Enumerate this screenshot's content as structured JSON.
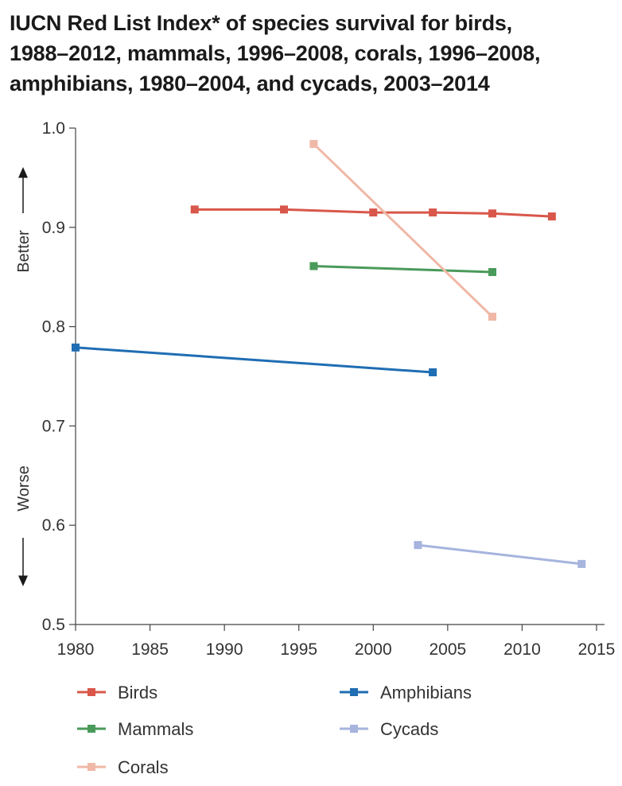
{
  "chart_data": {
    "type": "line",
    "title": [
      "IUCN Red List Index* of species survival for birds,",
      "1988–2012, mammals, 1996–2008, corals, 1996–2008,",
      "amphibians, 1980–2004, and cycads, 2003–2014"
    ],
    "xlim": [
      1980,
      2015
    ],
    "ylim": [
      0.5,
      1.0
    ],
    "x_ticks": [
      "1980",
      "1985",
      "1990",
      "1995",
      "2000",
      "2005",
      "2010",
      "2015"
    ],
    "y_ticks": [
      "0.5",
      "0.6",
      "0.7",
      "0.8",
      "0.9",
      "1.0"
    ],
    "annotations": {
      "better": "Better",
      "worse": "Worse"
    },
    "grid": false,
    "legend_position": "bottom",
    "series": [
      {
        "name": "Birds",
        "color": "#d9574a",
        "x": [
          1988,
          1994,
          2000,
          2004,
          2008,
          2012
        ],
        "y": [
          0.918,
          0.918,
          0.915,
          0.915,
          0.914,
          0.911
        ]
      },
      {
        "name": "Mammals",
        "color": "#4a9a5a",
        "x": [
          1996,
          2008
        ],
        "y": [
          0.861,
          0.855
        ]
      },
      {
        "name": "Corals",
        "color": "#f0b8a6",
        "x": [
          1996,
          2008
        ],
        "y": [
          0.984,
          0.81
        ]
      },
      {
        "name": "Amphibians",
        "color": "#1f6db3",
        "x": [
          1980,
          2004
        ],
        "y": [
          0.779,
          0.754
        ]
      },
      {
        "name": "Cycads",
        "color": "#a6b4de",
        "x": [
          2003,
          2014
        ],
        "y": [
          0.58,
          0.561
        ]
      }
    ]
  }
}
